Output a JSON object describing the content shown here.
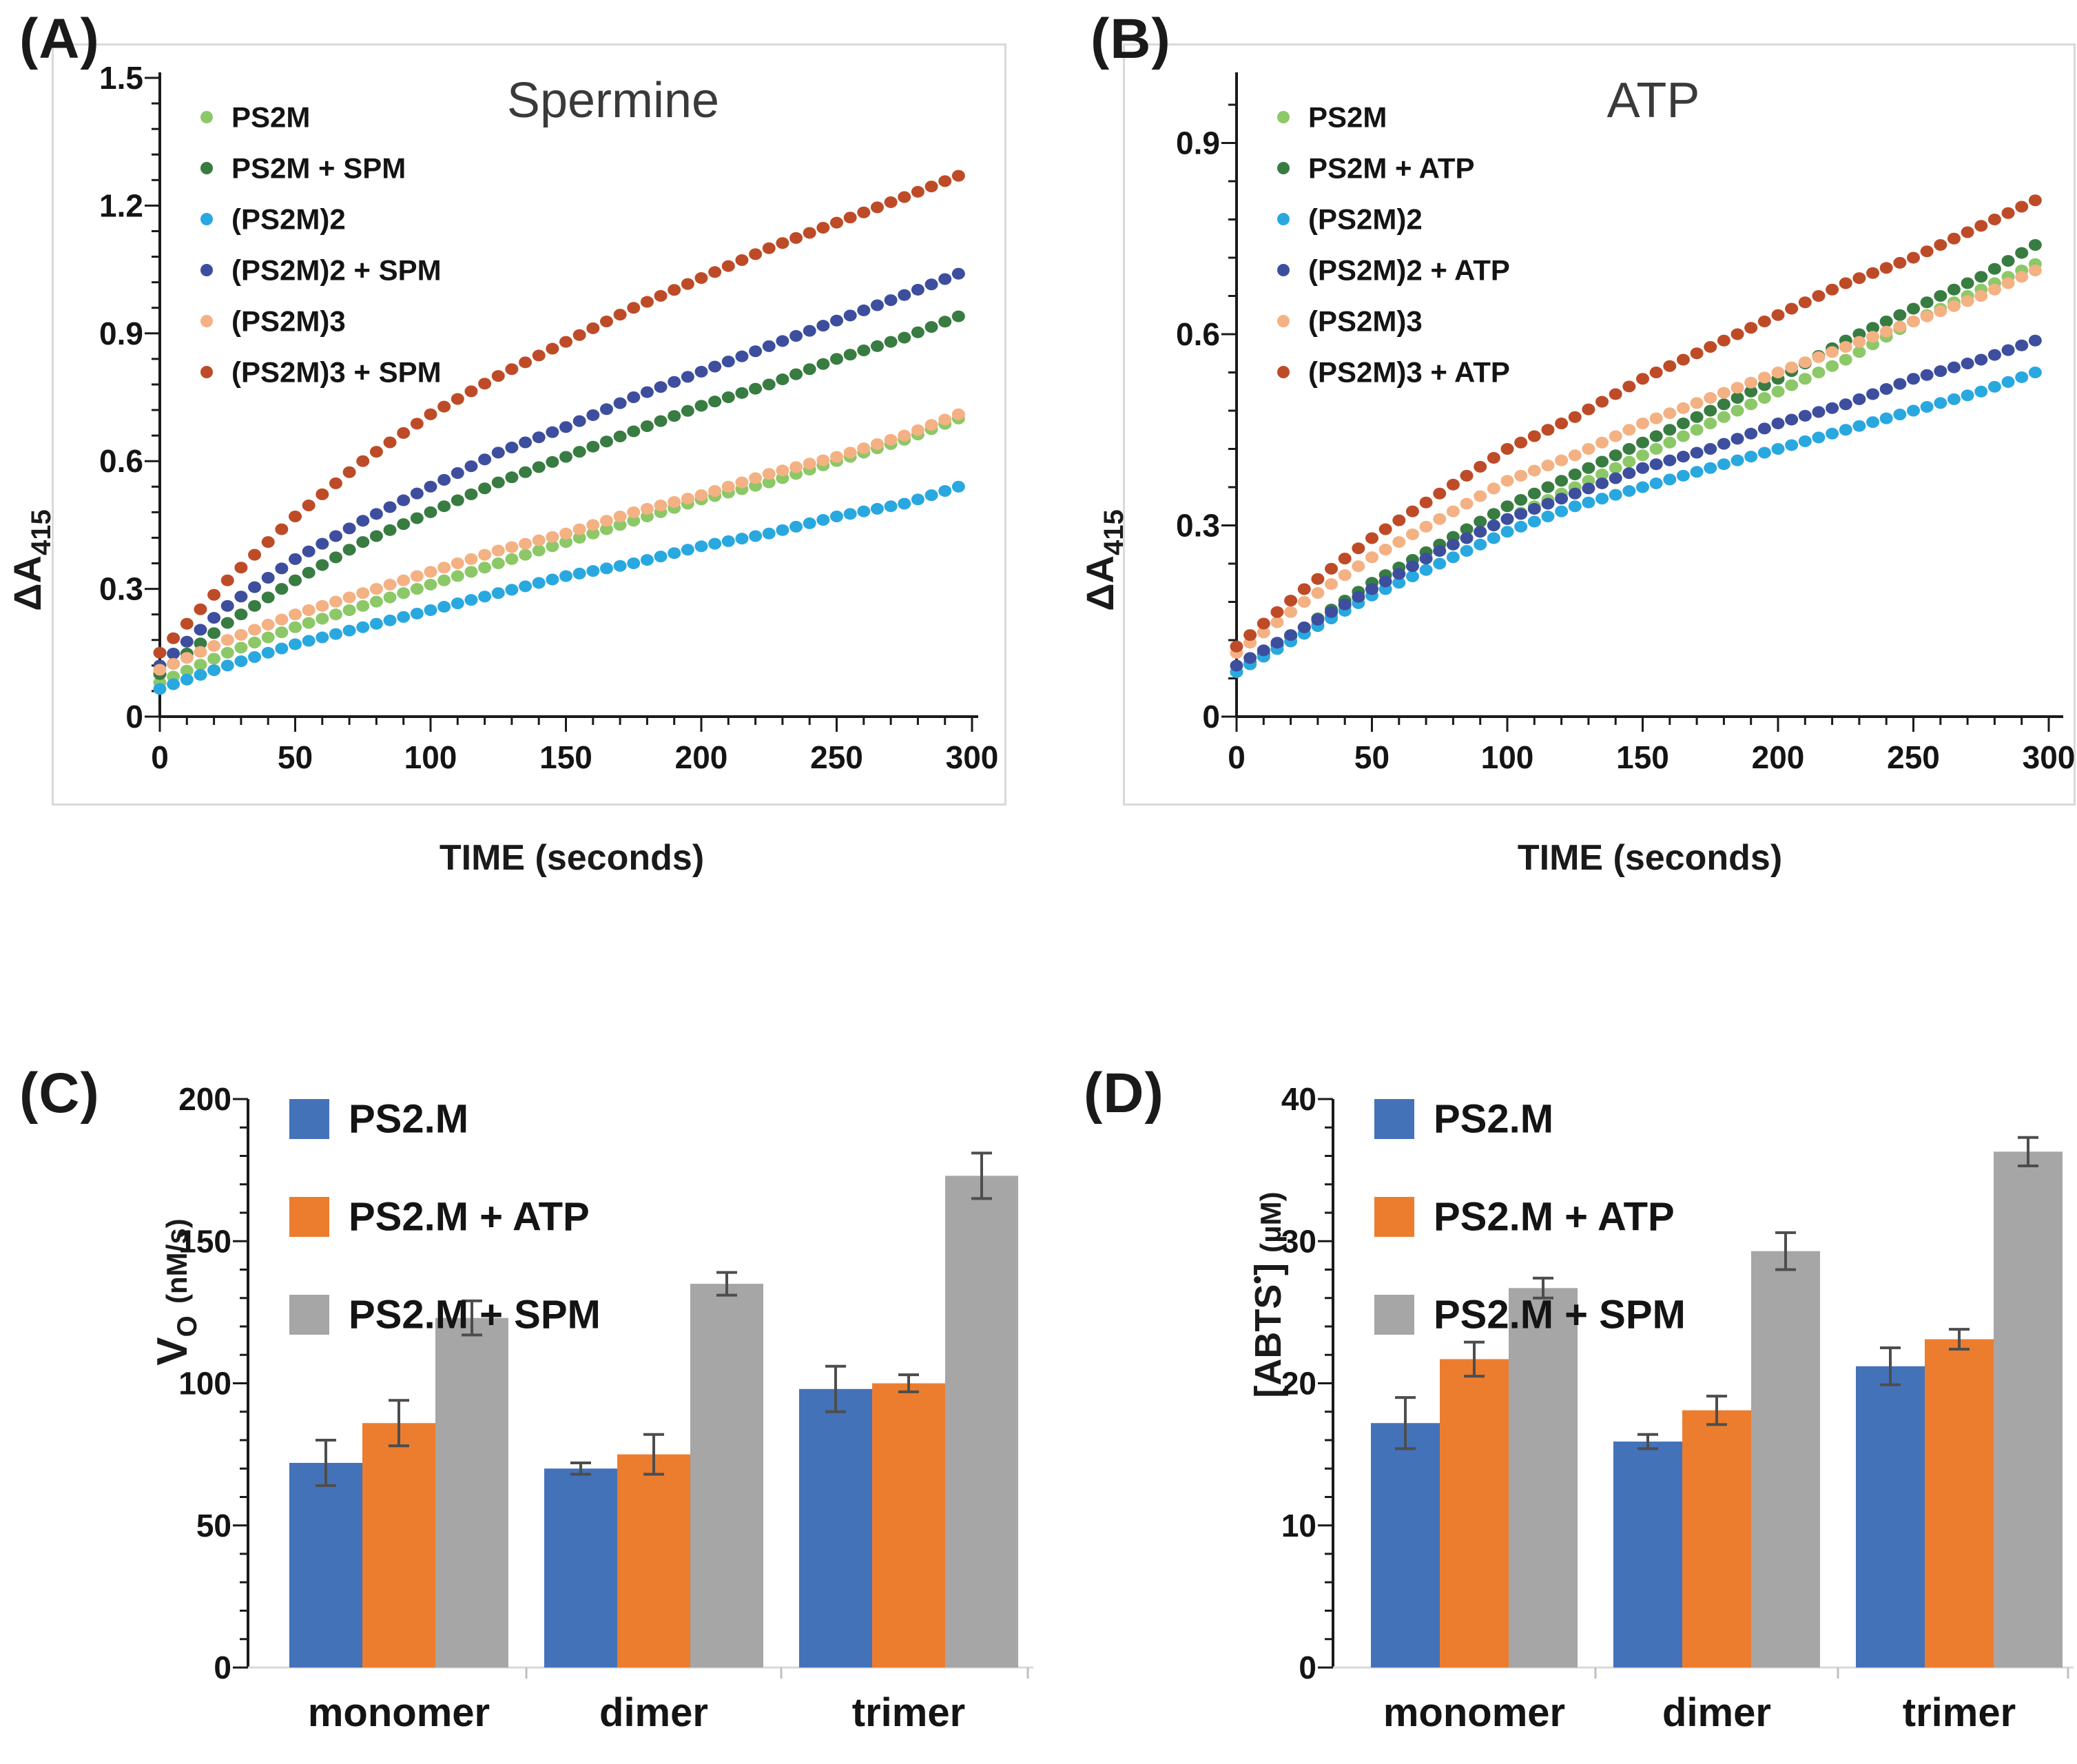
{
  "chart_data": [
    {
      "id": "A",
      "panel_label": "(A)",
      "title": "Spermine",
      "type": "scatter",
      "point_interval_seconds": 5,
      "x_axis": {
        "title": "TIME (seconds)",
        "min": 0,
        "max": 300,
        "major_step": 50,
        "minor_step": 10,
        "tick_labels": [
          "0",
          "50",
          "100",
          "150",
          "200",
          "250",
          "300"
        ]
      },
      "y_axis": {
        "label_main": "ΔA",
        "label_sub": "415",
        "min": 0,
        "max": 1.5,
        "major_step": 0.3,
        "minor_step": 0.06,
        "tick_labels": [
          "0",
          "0.3",
          "0.6",
          "0.9",
          "1.2",
          "1.5"
        ]
      },
      "legend_position": "top-left-inside",
      "series": [
        {
          "name": "PS2M",
          "color": "#8CC868",
          "points": [
            [
              0,
              0.08
            ],
            [
              25,
              0.15
            ],
            [
              50,
              0.21
            ],
            [
              75,
              0.26
            ],
            [
              100,
              0.31
            ],
            [
              125,
              0.36
            ],
            [
              150,
              0.41
            ],
            [
              175,
              0.46
            ],
            [
              200,
              0.51
            ],
            [
              225,
              0.55
            ],
            [
              250,
              0.6
            ],
            [
              275,
              0.65
            ],
            [
              295,
              0.7
            ]
          ]
        },
        {
          "name": "PS2M + SPM",
          "color": "#387C42",
          "points": [
            [
              0,
              0.1
            ],
            [
              25,
              0.22
            ],
            [
              50,
              0.32
            ],
            [
              75,
              0.41
            ],
            [
              100,
              0.48
            ],
            [
              125,
              0.55
            ],
            [
              150,
              0.61
            ],
            [
              175,
              0.67
            ],
            [
              200,
              0.73
            ],
            [
              225,
              0.78
            ],
            [
              250,
              0.84
            ],
            [
              275,
              0.89
            ],
            [
              295,
              0.94
            ]
          ]
        },
        {
          "name": "(PS2M)2",
          "color": "#29A8E0",
          "points": [
            [
              0,
              0.065
            ],
            [
              25,
              0.12
            ],
            [
              50,
              0.17
            ],
            [
              75,
              0.21
            ],
            [
              100,
              0.25
            ],
            [
              125,
              0.29
            ],
            [
              150,
              0.33
            ],
            [
              175,
              0.36
            ],
            [
              200,
              0.4
            ],
            [
              225,
              0.43
            ],
            [
              250,
              0.47
            ],
            [
              275,
              0.5
            ],
            [
              295,
              0.54
            ]
          ]
        },
        {
          "name": "(PS2M)2 + SPM",
          "color": "#3E4E9E",
          "points": [
            [
              0,
              0.12
            ],
            [
              25,
              0.26
            ],
            [
              50,
              0.37
            ],
            [
              75,
              0.46
            ],
            [
              100,
              0.54
            ],
            [
              125,
              0.62
            ],
            [
              150,
              0.68
            ],
            [
              175,
              0.75
            ],
            [
              200,
              0.81
            ],
            [
              225,
              0.87
            ],
            [
              250,
              0.93
            ],
            [
              275,
              0.99
            ],
            [
              295,
              1.04
            ]
          ]
        },
        {
          "name": "(PS2M)3",
          "color": "#F4B183",
          "points": [
            [
              0,
              0.11
            ],
            [
              25,
              0.18
            ],
            [
              50,
              0.24
            ],
            [
              75,
              0.29
            ],
            [
              100,
              0.34
            ],
            [
              125,
              0.39
            ],
            [
              150,
              0.43
            ],
            [
              175,
              0.48
            ],
            [
              200,
              0.52
            ],
            [
              225,
              0.57
            ],
            [
              250,
              0.61
            ],
            [
              275,
              0.66
            ],
            [
              295,
              0.71
            ]
          ]
        },
        {
          "name": "(PS2M)3 + SPM",
          "color": "#BE4B27",
          "points": [
            [
              0,
              0.15
            ],
            [
              25,
              0.32
            ],
            [
              50,
              0.47
            ],
            [
              75,
              0.6
            ],
            [
              100,
              0.71
            ],
            [
              125,
              0.8
            ],
            [
              150,
              0.88
            ],
            [
              175,
              0.96
            ],
            [
              200,
              1.03
            ],
            [
              225,
              1.1
            ],
            [
              250,
              1.16
            ],
            [
              275,
              1.22
            ],
            [
              295,
              1.27
            ]
          ]
        }
      ]
    },
    {
      "id": "B",
      "panel_label": "(B)",
      "title": "ATP",
      "type": "scatter",
      "point_interval_seconds": 5,
      "x_axis": {
        "title": "TIME (seconds)",
        "min": 0,
        "max": 300,
        "major_step": 50,
        "minor_step": 10,
        "tick_labels": [
          "0",
          "50",
          "100",
          "150",
          "200",
          "250",
          "300"
        ]
      },
      "y_axis": {
        "label_main": "ΔA",
        "label_sub": "415",
        "min": 0,
        "max": 1.0,
        "major_step": 0.3,
        "minor_step": 0.06,
        "tick_labels": [
          "0",
          "0.3",
          "0.6",
          "0.9"
        ]
      },
      "legend_position": "top-left-inside",
      "series": [
        {
          "name": "PS2M",
          "color": "#8CC868",
          "points": [
            [
              0,
              0.07
            ],
            [
              25,
              0.13
            ],
            [
              50,
              0.2
            ],
            [
              75,
              0.26
            ],
            [
              100,
              0.31
            ],
            [
              125,
              0.36
            ],
            [
              150,
              0.41
            ],
            [
              175,
              0.46
            ],
            [
              200,
              0.51
            ],
            [
              225,
              0.56
            ],
            [
              250,
              0.62
            ],
            [
              275,
              0.67
            ],
            [
              295,
              0.71
            ]
          ]
        },
        {
          "name": "PS2M + ATP",
          "color": "#387C42",
          "points": [
            [
              0,
              0.07
            ],
            [
              25,
              0.14
            ],
            [
              50,
              0.21
            ],
            [
              75,
              0.27
            ],
            [
              100,
              0.33
            ],
            [
              125,
              0.38
            ],
            [
              150,
              0.43
            ],
            [
              175,
              0.48
            ],
            [
              200,
              0.53
            ],
            [
              225,
              0.59
            ],
            [
              250,
              0.64
            ],
            [
              275,
              0.69
            ],
            [
              295,
              0.74
            ]
          ]
        },
        {
          "name": "(PS2M)2",
          "color": "#29A8E0",
          "points": [
            [
              0,
              0.07
            ],
            [
              25,
              0.13
            ],
            [
              50,
              0.19
            ],
            [
              75,
              0.24
            ],
            [
              100,
              0.29
            ],
            [
              125,
              0.33
            ],
            [
              150,
              0.36
            ],
            [
              175,
              0.39
            ],
            [
              200,
              0.42
            ],
            [
              225,
              0.45
            ],
            [
              250,
              0.48
            ],
            [
              275,
              0.51
            ],
            [
              295,
              0.54
            ]
          ]
        },
        {
          "name": "(PS2M)2 + ATP",
          "color": "#3E4E9E",
          "points": [
            [
              0,
              0.08
            ],
            [
              25,
              0.14
            ],
            [
              50,
              0.2
            ],
            [
              75,
              0.26
            ],
            [
              100,
              0.31
            ],
            [
              125,
              0.35
            ],
            [
              150,
              0.39
            ],
            [
              175,
              0.42
            ],
            [
              200,
              0.46
            ],
            [
              225,
              0.49
            ],
            [
              250,
              0.53
            ],
            [
              275,
              0.56
            ],
            [
              295,
              0.59
            ]
          ]
        },
        {
          "name": "(PS2M)3",
          "color": "#F4B183",
          "points": [
            [
              0,
              0.1
            ],
            [
              25,
              0.18
            ],
            [
              50,
              0.25
            ],
            [
              75,
              0.31
            ],
            [
              100,
              0.37
            ],
            [
              125,
              0.41
            ],
            [
              150,
              0.46
            ],
            [
              175,
              0.5
            ],
            [
              200,
              0.54
            ],
            [
              225,
              0.58
            ],
            [
              250,
              0.62
            ],
            [
              275,
              0.66
            ],
            [
              295,
              0.7
            ]
          ]
        },
        {
          "name": "(PS2M)3 + ATP",
          "color": "#BE4B27",
          "points": [
            [
              0,
              0.11
            ],
            [
              25,
              0.2
            ],
            [
              50,
              0.28
            ],
            [
              75,
              0.35
            ],
            [
              100,
              0.42
            ],
            [
              125,
              0.47
            ],
            [
              150,
              0.53
            ],
            [
              175,
              0.58
            ],
            [
              200,
              0.63
            ],
            [
              225,
              0.68
            ],
            [
              250,
              0.72
            ],
            [
              275,
              0.77
            ],
            [
              295,
              0.81
            ]
          ]
        }
      ]
    },
    {
      "id": "C",
      "panel_label": "(C)",
      "type": "bar",
      "y_axis": {
        "label_main": "V",
        "label_sub": "O",
        "label_unit": "(nM/s)",
        "min": 0,
        "max": 200,
        "major_step": 50,
        "minor_step": 10,
        "tick_labels": [
          "0",
          "50",
          "100",
          "150",
          "200"
        ]
      },
      "categories": [
        "monomer",
        "dimer",
        "trimer"
      ],
      "series": [
        {
          "name": "PS2.M",
          "color": "#4472B9",
          "values": [
            72,
            70,
            98
          ],
          "errors": [
            8,
            2,
            8
          ]
        },
        {
          "name": "PS2.M + ATP",
          "color": "#EC7D2F",
          "values": [
            86,
            75,
            100
          ],
          "errors": [
            8,
            7,
            3
          ]
        },
        {
          "name": "PS2.M + SPM",
          "color": "#A6A6A6",
          "values": [
            123,
            135,
            173
          ],
          "errors": [
            6,
            4,
            8
          ]
        }
      ]
    },
    {
      "id": "D",
      "panel_label": "(D)",
      "type": "bar",
      "y_axis": {
        "label_main": "[ABTS",
        "label_sup": "•",
        "label_close": "]",
        "label_unit": "(μM)",
        "min": 0,
        "max": 40,
        "major_step": 10,
        "minor_step": 2,
        "tick_labels": [
          "0",
          "10",
          "20",
          "30",
          "40"
        ]
      },
      "categories": [
        "monomer",
        "dimer",
        "trimer"
      ],
      "series": [
        {
          "name": "PS2.M",
          "color": "#4472B9",
          "values": [
            17.2,
            15.9,
            21.2
          ],
          "errors": [
            1.8,
            0.5,
            1.3
          ]
        },
        {
          "name": "PS2.M + ATP",
          "color": "#EC7D2F",
          "values": [
            21.7,
            18.1,
            23.1
          ],
          "errors": [
            1.2,
            1.0,
            0.7
          ]
        },
        {
          "name": "PS2.M + SPM",
          "color": "#A6A6A6",
          "values": [
            26.7,
            29.3,
            36.3
          ],
          "errors": [
            0.7,
            1.3,
            1.0
          ]
        }
      ]
    }
  ],
  "style": {
    "error_bar_color": "#4D4D4D",
    "axis_color": "#1a1a1a",
    "panel_border_color": "#d9d9d9",
    "baseline_color": "#d9d9d9"
  }
}
